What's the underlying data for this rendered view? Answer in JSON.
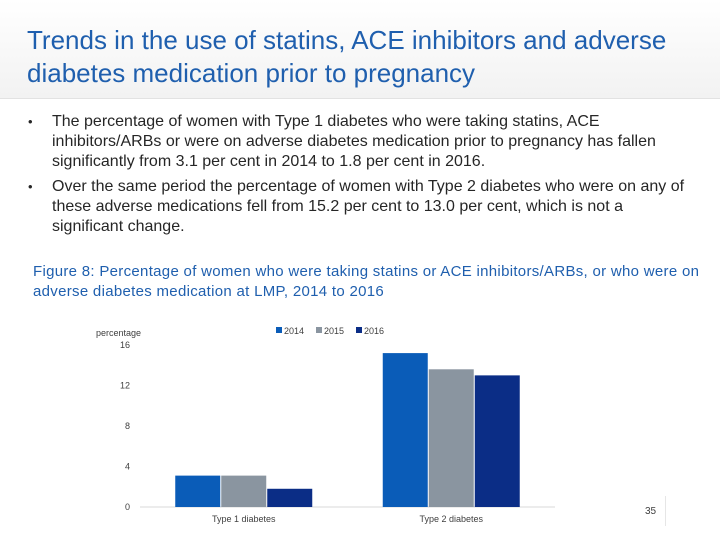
{
  "slide": {
    "title": "Trends in the use of statins, ACE inhibitors and adverse diabetes medication prior to pregnancy",
    "bullets": [
      "The percentage of women with Type 1 diabetes who were taking statins, ACE inhibitors/ARBs or were on adverse diabetes medication prior to pregnancy has fallen significantly from 3.1 per cent in 2014 to 1.8 per cent in 2016.",
      "Over the same period the percentage of women with Type 2 diabetes who were on any of these adverse medications fell from 15.2 per cent to 13.0 per cent, which is not a significant change."
    ],
    "figure_caption": "Figure 8: Percentage of women who were taking statins or ACE inhibitors/ARBs, or who were on adverse diabetes medication at LMP, 2014 to 2016",
    "page_number": "35"
  },
  "chart_data": {
    "type": "bar",
    "ylabel": "percentage",
    "ylim": [
      0,
      16
    ],
    "yticks": [
      "0",
      "4",
      "8",
      "12",
      "16"
    ],
    "categories": [
      "Type 1 diabetes",
      "Type 2 diabetes"
    ],
    "series": [
      {
        "name": "2014",
        "values": [
          3.1,
          15.2
        ],
        "color": "#0a5cb8"
      },
      {
        "name": "2015",
        "values": [
          3.1,
          13.6
        ],
        "color": "#8a95a0"
      },
      {
        "name": "2016",
        "values": [
          1.8,
          13.0
        ],
        "color": "#0b2d86"
      }
    ],
    "legend_position": "top-center",
    "grid": false
  }
}
